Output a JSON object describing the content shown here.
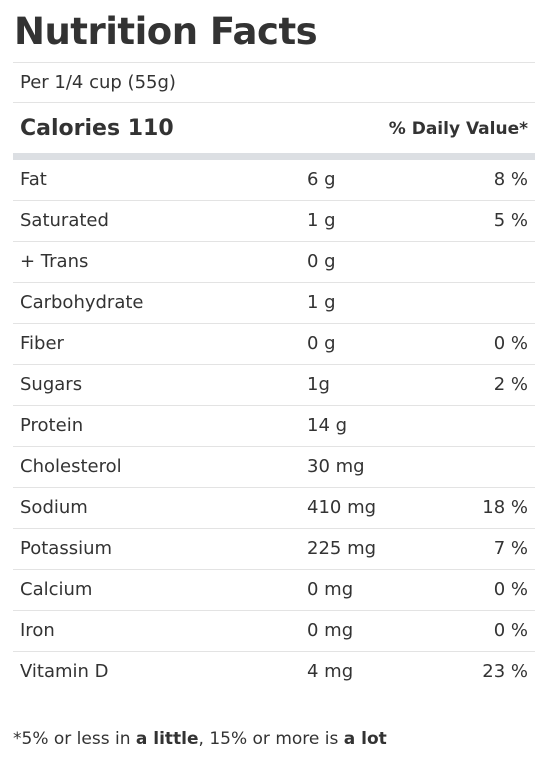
{
  "title": "Nutrition Facts",
  "serving": "Per 1/4 cup (55g)",
  "calories_label": "Calories 110",
  "daily_value_label": "% Daily Value*",
  "nutrients": [
    {
      "name": "Fat",
      "amount": "6 g",
      "dv": "8 %"
    },
    {
      "name": "Saturated",
      "amount": "1 g",
      "dv": "5 %"
    },
    {
      "name": "+ Trans",
      "amount": "0 g",
      "dv": ""
    },
    {
      "name": "Carbohydrate",
      "amount": "1 g",
      "dv": ""
    },
    {
      "name": "Fiber",
      "amount": "0 g",
      "dv": "0 %"
    },
    {
      "name": "Sugars",
      "amount": "1g",
      "dv": "2 %"
    },
    {
      "name": "Protein",
      "amount": "14 g",
      "dv": ""
    },
    {
      "name": "Cholesterol",
      "amount": "30 mg",
      "dv": ""
    },
    {
      "name": "Sodium",
      "amount": "410 mg",
      "dv": "18 %"
    },
    {
      "name": "Potassium",
      "amount": "225 mg",
      "dv": "7 %"
    },
    {
      "name": "Calcium",
      "amount": "0 mg",
      "dv": "0 %"
    },
    {
      "name": "Iron",
      "amount": "0 mg",
      "dv": "0 %"
    },
    {
      "name": "Vitamin D",
      "amount": "4 mg",
      "dv": "23 %"
    }
  ],
  "footnote": {
    "part1": "*5% or less in ",
    "bold1": "a little",
    "part2": ", 15% or more is ",
    "bold2": "a lot"
  },
  "colors": {
    "text": "#333333",
    "divider": "#e3e3e3",
    "thick_bar": "#dcdfe3"
  }
}
